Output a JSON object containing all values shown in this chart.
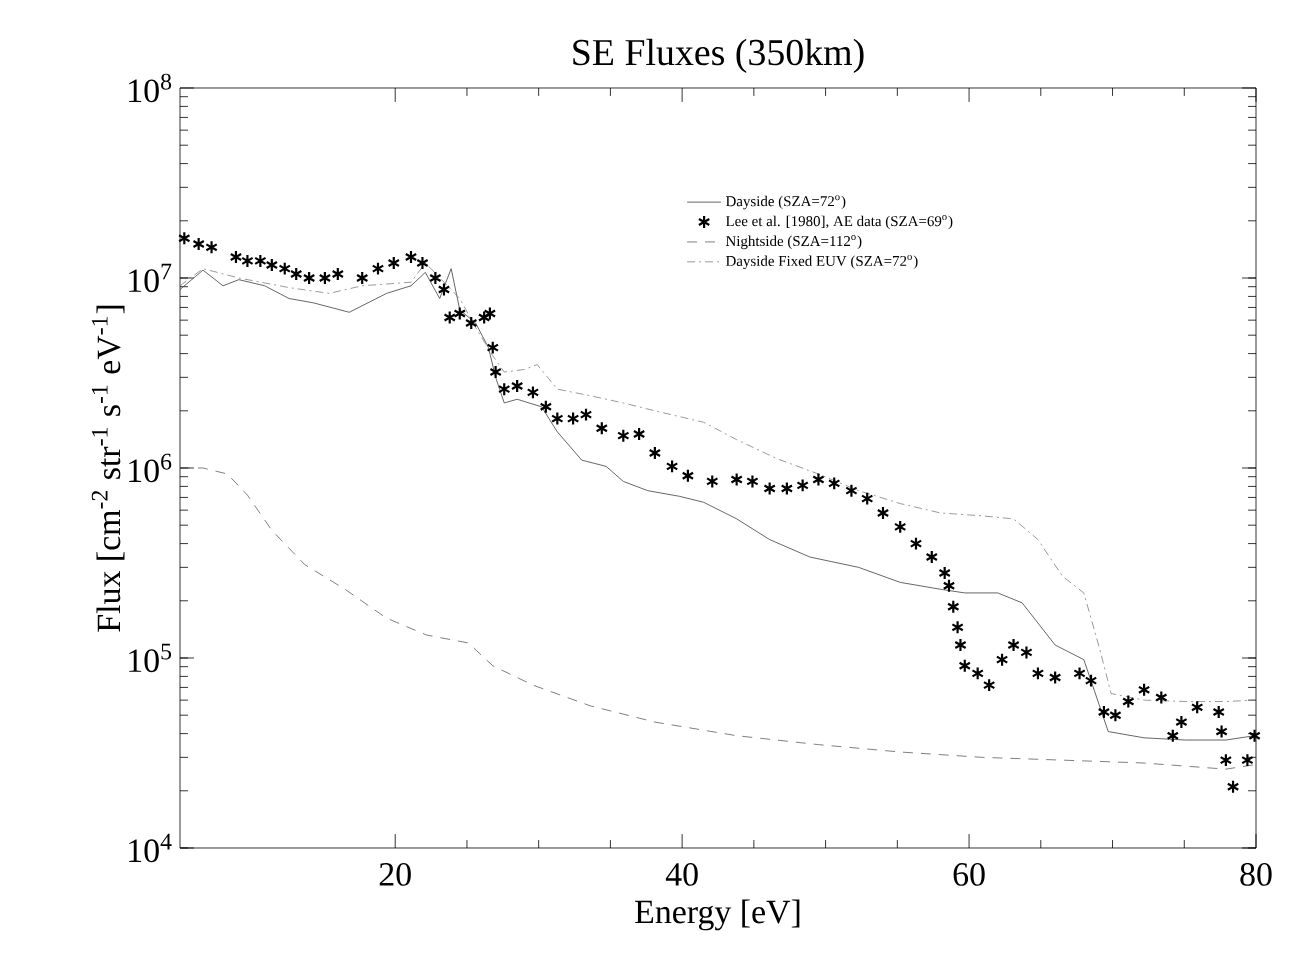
{
  "chart_data": {
    "type": "line",
    "title": "SE Fluxes (350km)",
    "xlabel": "Energy [eV]",
    "ylabel": "Flux [cm$^{-2}$ str$^{-1}$ s$^{-1}$ eV$^{-1}$]",
    "log": "y",
    "xlim": [
      5,
      80
    ],
    "ylim": [
      10000,
      100000000
    ],
    "xticks": [
      20,
      40,
      60,
      80
    ],
    "yticks": [
      {
        "value": 10000,
        "label": "10$^{4}$"
      },
      {
        "value": 100000,
        "label": "10$^{5}$"
      },
      {
        "value": 1000000,
        "label": "10$^{6}$"
      },
      {
        "value": 10000000,
        "label": "10$^{7}$"
      },
      {
        "value": 100000000,
        "label": "10$^{8}$"
      }
    ],
    "grid": false,
    "legend": "top right",
    "series": [
      {
        "name": "Dayside (SZA=72$^{o}$)",
        "line_style": "solid",
        "marker": "none",
        "color": "#404040",
        "x": [
          5,
          6.6,
          8,
          9.1,
          10.9,
          12.6,
          14.3,
          16.8,
          19.4,
          21.1,
          22.1,
          23.1,
          23.9,
          24.5,
          25.6,
          26.5,
          27,
          27.6,
          28.5,
          30.2,
          31.3,
          33,
          34.7,
          35.9,
          37.6,
          39.8,
          41.5,
          43.8,
          46.1,
          48.9,
          52.3,
          55.2,
          58,
          59.7,
          62,
          63.7,
          66,
          68,
          69.7,
          72.2,
          75.1,
          77.9,
          79.9
        ],
        "values": [
          8700000.0,
          11000000.0,
          9100000.0,
          9800000.0,
          9100000.0,
          7800000.0,
          7400000.0,
          6600000.0,
          8300000.0,
          9100000.0,
          10700000.0,
          7800000.0,
          11200000.0,
          6800000.0,
          5800000.0,
          4300000.0,
          3000000.0,
          2200000.0,
          2300000.0,
          2100000.0,
          1550000.0,
          1100000.0,
          1020000.0,
          850000.0,
          760000.0,
          710000.0,
          660000.0,
          540000.0,
          420000.0,
          340000.0,
          300000.0,
          250000.0,
          230000.0,
          220000.0,
          220000.0,
          195000.0,
          117000.0,
          98000.0,
          41000.0,
          38000.0,
          37000.0,
          37000.0,
          39000.0
        ]
      },
      {
        "name": "Lee et al. [1980], AE data (SZA=69$^{o}$)",
        "type": "scatter",
        "marker": "cross",
        "color": "#000000",
        "x": [
          5.3,
          6.3,
          7.2,
          8.9,
          9.7,
          10.6,
          11.4,
          12.3,
          13.1,
          14,
          15.1,
          16,
          17.7,
          18.8,
          19.9,
          21.1,
          21.9,
          22.8,
          23.4,
          23.8,
          24.5,
          25.3,
          26.2,
          26.6,
          26.8,
          27,
          27.6,
          28.5,
          29.6,
          30.5,
          31.3,
          32.4,
          33.3,
          34.4,
          35.9,
          37,
          38.1,
          39.3,
          40.4,
          42.1,
          43.8,
          44.9,
          46.1,
          47.3,
          48.4,
          49.5,
          50.6,
          51.8,
          52.9,
          54,
          55.2,
          56.3,
          57.4,
          58.3,
          58.6,
          58.9,
          59.2,
          59.4,
          59.7,
          60.6,
          61.4,
          62.3,
          63.1,
          64,
          64.8,
          66,
          67.7,
          68.5,
          69.4,
          70.2,
          71.1,
          72.2,
          73.4,
          74.2,
          74.8,
          75.9,
          77.4,
          77.6,
          77.9,
          78.4,
          79.4,
          79.9
        ],
        "values": [
          16200000.0,
          15100000.0,
          14500000.0,
          12900000.0,
          12300000.0,
          12300000.0,
          11700000.0,
          11200000.0,
          10500000.0,
          10000000.0,
          10000000.0,
          10500000.0,
          10000000.0,
          11200000.0,
          12000000.0,
          12900000.0,
          12000000.0,
          10000000.0,
          8700000.0,
          6200000.0,
          6500000.0,
          5800000.0,
          6200000.0,
          6500000.0,
          4300000.0,
          3200000.0,
          2600000.0,
          2700000.0,
          2500000.0,
          2100000.0,
          1820000.0,
          1820000.0,
          1910000.0,
          1620000.0,
          1480000.0,
          1510000.0,
          1200000.0,
          1020000.0,
          910000.0,
          850000.0,
          870000.0,
          850000.0,
          780000.0,
          780000.0,
          810000.0,
          870000.0,
          830000.0,
          760000.0,
          690000.0,
          580000.0,
          490000.0,
          400000.0,
          340000.0,
          280000.0,
          240000.0,
          186000.0,
          145000.0,
          117000.0,
          91000.0,
          83000.0,
          72000.0,
          98000.0,
          117000.0,
          107000.0,
          83000.0,
          79000.0,
          83000.0,
          76000.0,
          52000.0,
          50000.0,
          59000.0,
          68000.0,
          62000.0,
          39000.0,
          46000.0,
          55000.0,
          52000.0,
          41000.0,
          29000.0,
          21000.0,
          29000.0,
          39000.0
        ]
      },
      {
        "name": "Nightside (SZA=112$^{o}$)",
        "line_style": "dashed",
        "marker": "none",
        "color": "#606060",
        "x": [
          5,
          6.6,
          8.3,
          9.7,
          11.4,
          13.7,
          16.5,
          19.4,
          22.2,
          25.1,
          26.8,
          29.6,
          33.6,
          38.1,
          43.8,
          49.5,
          55.2,
          60.9,
          66.5,
          72.2,
          77.9,
          80
        ],
        "values": [
          1000000.0,
          1000000.0,
          930000.0,
          720000.0,
          470000.0,
          310000.0,
          230000.0,
          162000.0,
          132000.0,
          120000.0,
          91000.0,
          72000.0,
          56000.0,
          46000.0,
          39000.0,
          35000.0,
          32000.0,
          30000.0,
          29000.0,
          28000.0,
          26000.0,
          27500.0
        ]
      },
      {
        "name": "Dayside Fixed EUV (SZA=72$^{o}$)",
        "line_style": "dashdot",
        "marker": "none",
        "color": "#808080",
        "x": [
          5,
          6.6,
          9.1,
          12.6,
          15.4,
          17.7,
          21.1,
          22.1,
          23.4,
          24.5,
          25.6,
          26.8,
          27.6,
          29,
          29.9,
          31.3,
          33.6,
          35.9,
          38.1,
          41.5,
          43.8,
          46.6,
          49.5,
          52.3,
          55.2,
          58,
          60.9,
          63.1,
          64.8,
          66.5,
          68,
          69.1,
          69.9,
          72.2,
          75.1,
          77.9,
          79.9
        ],
        "values": [
          9100000.0,
          11200000.0,
          10000000.0,
          8900000.0,
          8300000.0,
          9100000.0,
          9500000.0,
          12000000.0,
          9500000.0,
          7800000.0,
          5500000.0,
          3900000.0,
          3200000.0,
          3300000.0,
          3500000.0,
          2600000.0,
          2400000.0,
          2200000.0,
          2000000.0,
          1740000.0,
          1410000.0,
          1120000.0,
          930000.0,
          760000.0,
          650000.0,
          580000.0,
          560000.0,
          540000.0,
          420000.0,
          270000.0,
          220000.0,
          112000.0,
          65000.0,
          60000.0,
          59000.0,
          59000.0,
          60000.0
        ]
      }
    ]
  }
}
